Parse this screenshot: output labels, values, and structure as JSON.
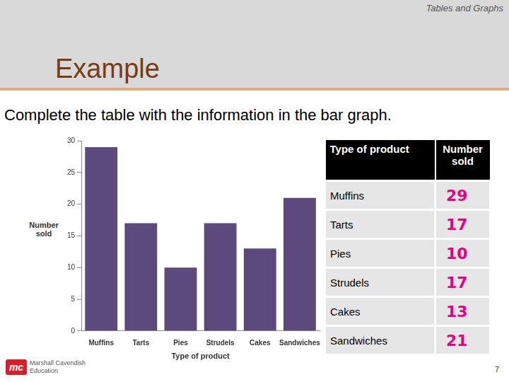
{
  "header": {
    "section": "Tables and Graphs",
    "title": "Example"
  },
  "instruction": "Complete the table with the information in the bar graph.",
  "chart_data": {
    "type": "bar",
    "categories": [
      "Muffins",
      "Tarts",
      "Pies",
      "Strudels",
      "Cakes",
      "Sandwiches"
    ],
    "values": [
      29,
      17,
      10,
      17,
      13,
      21
    ],
    "color": "#5c4a7d",
    "xlabel": "Type of product",
    "ylabel": "Number sold",
    "ylim": [
      0,
      30
    ],
    "yticks": [
      0,
      5,
      10,
      15,
      20,
      25,
      30
    ],
    "grid": false
  },
  "table": {
    "columns": [
      "Type of product",
      "Number sold"
    ],
    "rows": [
      [
        "Muffins",
        29
      ],
      [
        "Tarts",
        17
      ],
      [
        "Pies",
        10
      ],
      [
        "Strudels",
        17
      ],
      [
        "Cakes",
        13
      ],
      [
        "Sandwiches",
        21
      ]
    ]
  },
  "footer": {
    "logo": "mc",
    "publisher": [
      "Marshall Cavendish",
      "Education"
    ],
    "page": 7
  }
}
